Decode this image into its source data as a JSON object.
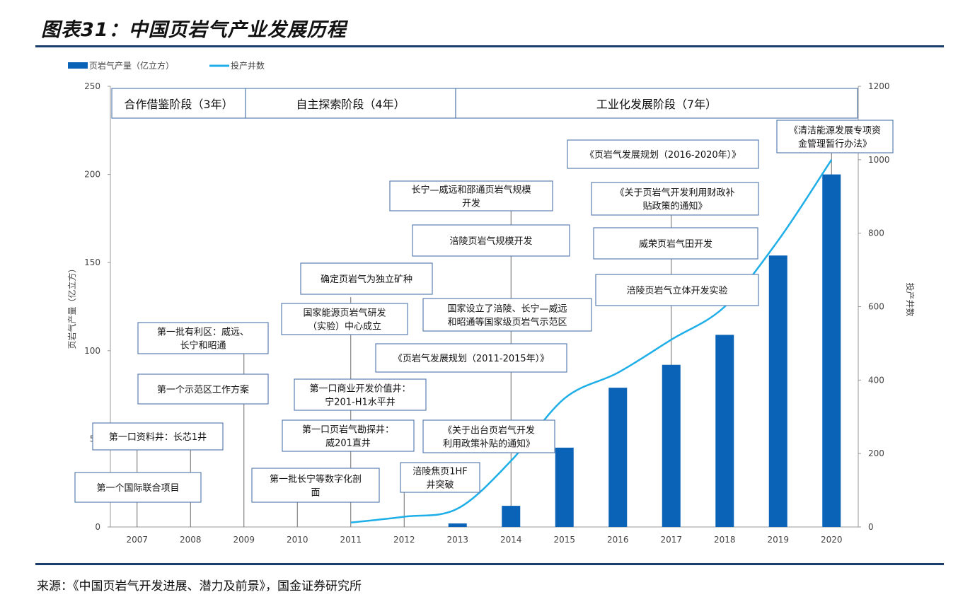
{
  "header": {
    "title": "图表31：中国页岩气产业发展历程"
  },
  "footer": {
    "source": "来源：《中国页岩气开发进展、潜力及前景》，国金证券研究所"
  },
  "colors": {
    "bar": "#0b63b8",
    "line": "#1eaee8",
    "box_border": "#5a7fb0",
    "rule": "#1a3d6b"
  },
  "chart_data": {
    "type": "bar",
    "categories": [
      "2007",
      "2008",
      "2009",
      "2010",
      "2011",
      "2012",
      "2013",
      "2014",
      "2015",
      "2016",
      "2017",
      "2018",
      "2019",
      "2020"
    ],
    "series": [
      {
        "name": "页岩气产量（亿立方）",
        "type": "bar",
        "axis": "left",
        "values": [
          0,
          0,
          0,
          0,
          0,
          0,
          2,
          12,
          45,
          79,
          92,
          109,
          154,
          200
        ]
      },
      {
        "name": "投产井数",
        "type": "line",
        "axis": "right",
        "values": [
          null,
          null,
          null,
          null,
          12,
          28,
          50,
          180,
          350,
          420,
          510,
          600,
          780,
          1000
        ]
      }
    ],
    "ylabel": "页岩气产量（亿立方）",
    "y2label": "投产井数",
    "ylim": [
      0,
      250
    ],
    "y2lim": [
      0,
      1200
    ],
    "yticks": [
      "0",
      "50",
      "100",
      "150",
      "200",
      "250"
    ],
    "y2ticks": [
      "0",
      "200",
      "400",
      "600",
      "800",
      "1000",
      "1200"
    ],
    "grid": false,
    "legend": "top-left",
    "stages": [
      {
        "label": "合作借鉴阶段（3年）"
      },
      {
        "label": "自主探索阶段（4年）"
      },
      {
        "label": "工业化发展阶段（7年）"
      }
    ],
    "annotations": [
      {
        "year": "2007",
        "lines": [
          "第一个国际联合项目"
        ]
      },
      {
        "year": "2008",
        "lines": [
          "第一口资料井：长芯1井"
        ]
      },
      {
        "year": "2009",
        "lines": [
          "第一批有利区：威远、",
          "长宁和昭通"
        ]
      },
      {
        "year": "2009",
        "lines": [
          "第一个示范区工作方案"
        ]
      },
      {
        "year": "2010",
        "lines": [
          "第一批长宁等数字化剖",
          "面"
        ]
      },
      {
        "year": "2011",
        "lines": [
          "第一口页岩气勘探井：",
          "威201直井"
        ]
      },
      {
        "year": "2011",
        "lines": [
          "第一口商业开发价值井：",
          "宁201-H1水平井"
        ]
      },
      {
        "year": "2011",
        "lines": [
          "国家能源页岩气研发",
          "（实验）中心成立"
        ]
      },
      {
        "year": "2011",
        "lines": [
          "确定页岩气为独立矿种"
        ]
      },
      {
        "year": "2012",
        "lines": [
          "涪陵焦页1HF",
          "井突破"
        ]
      },
      {
        "year": "2014",
        "lines": [
          "《关于出台页岩气开发",
          "利用政策补贴的通知》"
        ]
      },
      {
        "year": "2014",
        "lines": [
          "《页岩气发展规划（2011-2015年）》"
        ]
      },
      {
        "year": "2014",
        "lines": [
          "国家设立了涪陵、长宁—威远",
          "和昭通等国家级页岩气示范区"
        ]
      },
      {
        "year": "2014",
        "lines": [
          "涪陵页岩气规模开发"
        ]
      },
      {
        "year": "2014",
        "lines": [
          "长宁—威远和邵通页岩气规模",
          "开发"
        ]
      },
      {
        "year": "2017",
        "lines": [
          "涪陵页岩气立体开发实验"
        ]
      },
      {
        "year": "2017",
        "lines": [
          "威荣页岩气田开发"
        ]
      },
      {
        "year": "2017",
        "lines": [
          "《关于页岩气开发利用财政补",
          "贴政策的通知》"
        ]
      },
      {
        "year": "2017",
        "lines": [
          "《页岩气发展规划（2016-2020年）》"
        ]
      },
      {
        "year": "2020",
        "lines": [
          "《清洁能源发展专项资",
          "金管理暂行办法》"
        ]
      }
    ]
  }
}
